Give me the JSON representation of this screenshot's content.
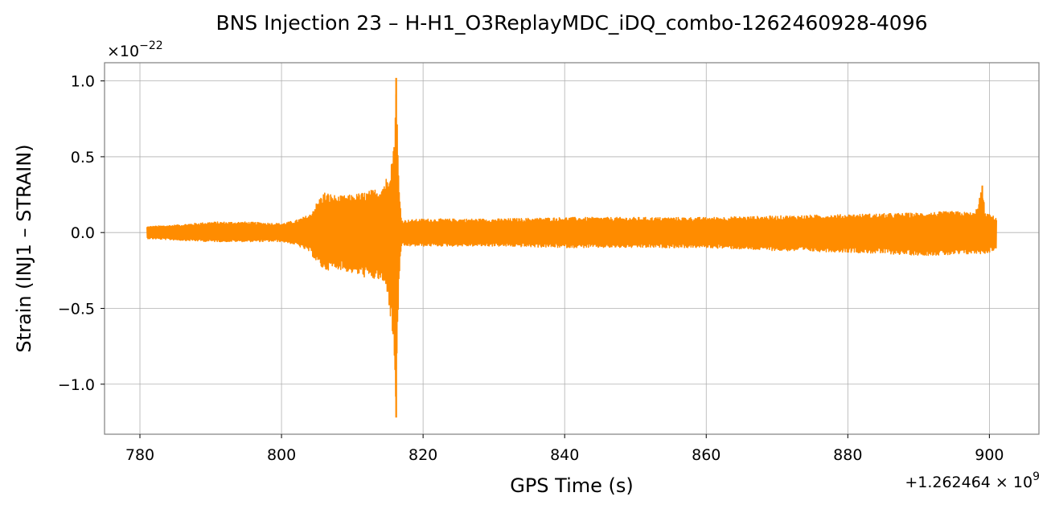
{
  "chart_data": {
    "type": "line",
    "title": "BNS Injection 23 – H-H1_O3ReplayMDC_iDQ_combo-1262460928-4096",
    "xlabel": "GPS Time (s)",
    "ylabel": "Strain (INJ1 – STRAIN)",
    "x_offset_text": "+1.262464 × 10",
    "x_offset_exponent": "9",
    "y_multiplier_text": "×10",
    "y_multiplier_exponent": "−22",
    "xlim": [
      775,
      907
    ],
    "ylim": [
      -1.33,
      1.12
    ],
    "x_ticks": [
      780,
      800,
      820,
      840,
      860,
      880,
      900
    ],
    "x_tick_labels": [
      "780",
      "800",
      "820",
      "840",
      "860",
      "880",
      "900"
    ],
    "y_ticks": [
      -1.0,
      -0.5,
      0.0,
      0.5,
      1.0
    ],
    "y_tick_labels": [
      "−1.0",
      "−0.5",
      "0.0",
      "0.5",
      "1.0"
    ],
    "grid": true,
    "line_color": "#ff8c00",
    "series": [
      {
        "envelope_x": [
          781,
          785,
          790,
          795,
          800,
          802,
          804,
          805,
          806,
          808,
          810,
          812,
          814,
          815,
          815.8,
          816.2,
          816.6,
          817,
          820,
          830,
          840,
          850,
          860,
          870,
          880,
          890,
          895,
          898,
          899,
          899.4,
          900,
          901
        ],
        "envelope_upper": [
          0.04,
          0.05,
          0.07,
          0.07,
          0.06,
          0.08,
          0.12,
          0.2,
          0.27,
          0.24,
          0.25,
          0.27,
          0.3,
          0.38,
          0.55,
          1.02,
          0.3,
          0.08,
          0.09,
          0.09,
          0.1,
          0.1,
          0.1,
          0.11,
          0.12,
          0.13,
          0.14,
          0.13,
          0.31,
          0.13,
          0.12,
          0.1
        ],
        "envelope_lower": [
          -0.04,
          -0.05,
          -0.06,
          -0.06,
          -0.06,
          -0.08,
          -0.13,
          -0.2,
          -0.25,
          -0.24,
          -0.27,
          -0.3,
          -0.32,
          -0.4,
          -0.75,
          -1.22,
          -0.3,
          -0.09,
          -0.09,
          -0.09,
          -0.1,
          -0.1,
          -0.1,
          -0.12,
          -0.13,
          -0.15,
          -0.15,
          -0.14,
          -0.14,
          -0.14,
          -0.13,
          -0.11
        ]
      }
    ]
  }
}
